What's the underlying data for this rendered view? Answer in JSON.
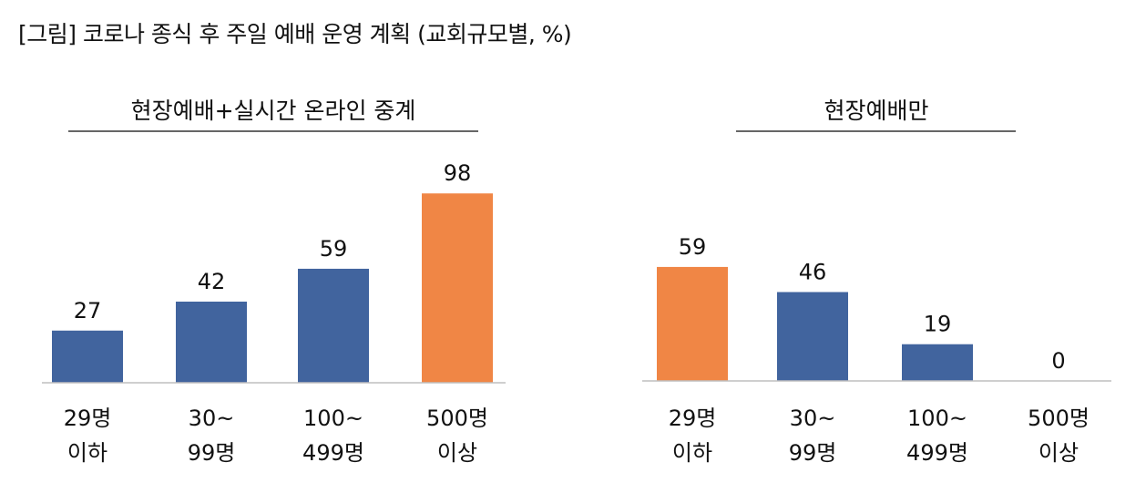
{
  "figure_title": "[그림] 코로나 종식 후 주일 예배 운영 계획 (교회규모별, %)",
  "colors": {
    "default_bar": "#41649E",
    "highlight_bar": "#F08645",
    "axis": "#BFBFBF",
    "title_rule": "#333333"
  },
  "chart_data": [
    {
      "type": "bar",
      "title": "현장예배+실시간 온라인 중계",
      "categories": [
        [
          "29명",
          "이하"
        ],
        [
          "30~",
          "99명"
        ],
        [
          "100~",
          "499명"
        ],
        [
          "500명",
          "이상"
        ]
      ],
      "values": [
        27,
        42,
        59,
        98
      ],
      "highlight_index": 3,
      "ylim": [
        0,
        100
      ],
      "grid": false,
      "legend": "none"
    },
    {
      "type": "bar",
      "title": "현장예배만",
      "categories": [
        [
          "29명",
          "이하"
        ],
        [
          "30~",
          "99명"
        ],
        [
          "100~",
          "499명"
        ],
        [
          "500명",
          "이상"
        ]
      ],
      "values": [
        59,
        46,
        19,
        0
      ],
      "highlight_index": 0,
      "ylim": [
        0,
        100
      ],
      "grid": false,
      "legend": "none"
    }
  ]
}
